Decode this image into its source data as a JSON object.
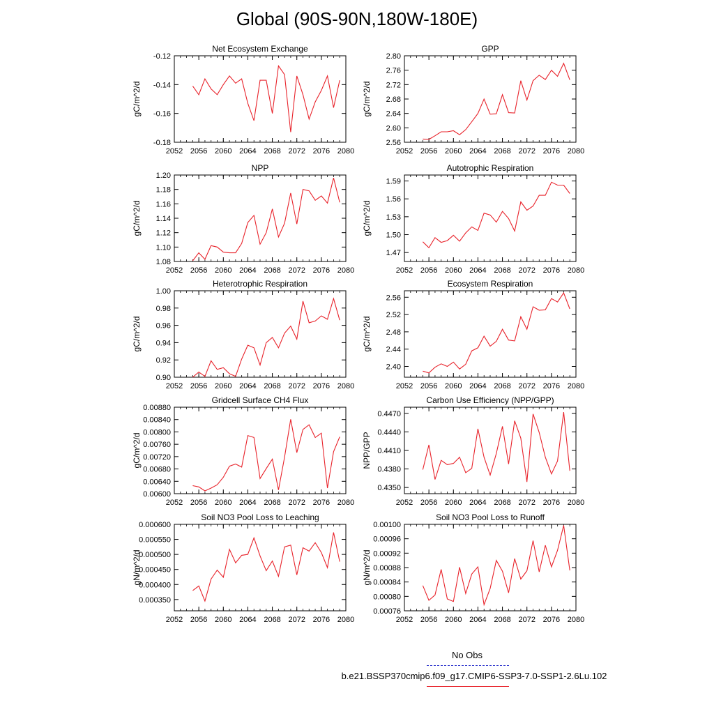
{
  "title": "Global (90S-90N,180W-180E)",
  "legend": {
    "obs_label": "No Obs",
    "case_label": "b.e21.BSSP370cmip6.f09_g17.CMIP6-SSP3-7.0-SSP1-2.6Lu.102",
    "obs_color": "#2c33cc",
    "case_color": "#e8222a"
  },
  "chart_data": [
    {
      "type": "line",
      "title": "Net Ecosystem Exchange",
      "ylabel": "gC/m^2/d",
      "xlim": [
        2052,
        2080
      ],
      "xticks": [
        "2052",
        "2056",
        "2060",
        "2064",
        "2068",
        "2072",
        "2076",
        "2080"
      ],
      "ylim": [
        -0.18,
        -0.12
      ],
      "yticks": [
        "-0.18",
        "-0.16",
        "-0.14",
        "-0.12"
      ],
      "x": [
        2055,
        2056,
        2057,
        2058,
        2059,
        2060,
        2061,
        2062,
        2063,
        2064,
        2065,
        2066,
        2067,
        2068,
        2069,
        2070,
        2071,
        2072,
        2073,
        2074,
        2075,
        2076,
        2077,
        2078,
        2079
      ],
      "series": [
        {
          "values": [
            -0.141,
            -0.147,
            -0.136,
            -0.143,
            -0.147,
            -0.14,
            -0.134,
            -0.139,
            -0.136,
            -0.153,
            -0.165,
            -0.137,
            -0.137,
            -0.16,
            -0.127,
            -0.133,
            -0.173,
            -0.134,
            -0.147,
            -0.164,
            -0.152,
            -0.144,
            -0.134,
            -0.156,
            -0.137
          ]
        }
      ]
    },
    {
      "type": "line",
      "title": "GPP",
      "ylabel": "gC/m^2/d",
      "xlim": [
        2052,
        2080
      ],
      "xticks": [
        "2052",
        "2056",
        "2060",
        "2064",
        "2068",
        "2072",
        "2076",
        "2080"
      ],
      "ylim": [
        2.56,
        2.8
      ],
      "yticks": [
        "2.56",
        "2.60",
        "2.64",
        "2.68",
        "2.72",
        "2.76",
        "2.80"
      ],
      "x": [
        2055,
        2056,
        2057,
        2058,
        2059,
        2060,
        2061,
        2062,
        2063,
        2064,
        2065,
        2066,
        2067,
        2068,
        2069,
        2070,
        2071,
        2072,
        2073,
        2074,
        2075,
        2076,
        2077,
        2078,
        2079
      ],
      "series": [
        {
          "values": [
            2.569,
            2.568,
            2.578,
            2.589,
            2.589,
            2.592,
            2.581,
            2.595,
            2.617,
            2.64,
            2.68,
            2.638,
            2.639,
            2.692,
            2.642,
            2.641,
            2.731,
            2.677,
            2.731,
            2.746,
            2.734,
            2.76,
            2.743,
            2.779,
            2.733
          ]
        }
      ]
    },
    {
      "type": "line",
      "title": "NPP",
      "ylabel": "gC/m^2/d",
      "xlim": [
        2052,
        2080
      ],
      "xticks": [
        "2052",
        "2056",
        "2060",
        "2064",
        "2068",
        "2072",
        "2076",
        "2080"
      ],
      "ylim": [
        1.08,
        1.2
      ],
      "yticks": [
        "1.08",
        "1.10",
        "1.12",
        "1.14",
        "1.16",
        "1.18",
        "1.20"
      ],
      "x": [
        2055,
        2056,
        2057,
        2058,
        2059,
        2060,
        2061,
        2062,
        2063,
        2064,
        2065,
        2066,
        2067,
        2068,
        2069,
        2070,
        2071,
        2072,
        2073,
        2074,
        2075,
        2076,
        2077,
        2078,
        2079
      ],
      "series": [
        {
          "values": [
            1.081,
            1.092,
            1.083,
            1.102,
            1.1,
            1.093,
            1.092,
            1.092,
            1.105,
            1.134,
            1.144,
            1.104,
            1.12,
            1.153,
            1.114,
            1.133,
            1.175,
            1.132,
            1.18,
            1.178,
            1.165,
            1.171,
            1.161,
            1.196,
            1.162
          ]
        }
      ]
    },
    {
      "type": "line",
      "title": "Autotrophic Respiration",
      "ylabel": "gC/m^2/d",
      "xlim": [
        2052,
        2080
      ],
      "xticks": [
        "2052",
        "2056",
        "2060",
        "2064",
        "2068",
        "2072",
        "2076",
        "2080"
      ],
      "ylim": [
        1.455,
        1.6
      ],
      "yticks": [
        "1.47",
        "1.50",
        "1.53",
        "1.56",
        "1.59"
      ],
      "x": [
        2055,
        2056,
        2057,
        2058,
        2059,
        2060,
        2061,
        2062,
        2063,
        2064,
        2065,
        2066,
        2067,
        2068,
        2069,
        2070,
        2071,
        2072,
        2073,
        2074,
        2075,
        2076,
        2077,
        2078,
        2079
      ],
      "series": [
        {
          "values": [
            1.488,
            1.478,
            1.495,
            1.487,
            1.49,
            1.499,
            1.489,
            1.503,
            1.513,
            1.507,
            1.536,
            1.533,
            1.521,
            1.539,
            1.527,
            1.506,
            1.555,
            1.541,
            1.548,
            1.566,
            1.566,
            1.588,
            1.583,
            1.583,
            1.569
          ]
        }
      ]
    },
    {
      "type": "line",
      "title": "Heterotrophic Respiration",
      "ylabel": "gC/m^2/d",
      "xlim": [
        2052,
        2080
      ],
      "xticks": [
        "2052",
        "2056",
        "2060",
        "2064",
        "2068",
        "2072",
        "2076",
        "2080"
      ],
      "ylim": [
        0.9,
        1.0
      ],
      "yticks": [
        "0.90",
        "0.92",
        "0.94",
        "0.96",
        "0.98",
        "1.00"
      ],
      "x": [
        2055,
        2056,
        2057,
        2058,
        2059,
        2060,
        2061,
        2062,
        2063,
        2064,
        2065,
        2066,
        2067,
        2068,
        2069,
        2070,
        2071,
        2072,
        2073,
        2074,
        2075,
        2076,
        2077,
        2078,
        2079
      ],
      "series": [
        {
          "values": [
            0.9,
            0.906,
            0.901,
            0.919,
            0.909,
            0.911,
            0.904,
            0.901,
            0.921,
            0.937,
            0.934,
            0.914,
            0.94,
            0.946,
            0.934,
            0.951,
            0.959,
            0.944,
            0.988,
            0.963,
            0.965,
            0.971,
            0.967,
            0.991,
            0.966
          ]
        }
      ]
    },
    {
      "type": "line",
      "title": "Ecosystem Respiration",
      "ylabel": "gC/m^2/d",
      "xlim": [
        2052,
        2080
      ],
      "xticks": [
        "2052",
        "2056",
        "2060",
        "2064",
        "2068",
        "2072",
        "2076",
        "2080"
      ],
      "ylim": [
        2.375,
        2.575
      ],
      "yticks": [
        "2.40",
        "2.44",
        "2.48",
        "2.52",
        "2.56"
      ],
      "x": [
        2055,
        2056,
        2057,
        2058,
        2059,
        2060,
        2061,
        2062,
        2063,
        2064,
        2065,
        2066,
        2067,
        2068,
        2069,
        2070,
        2071,
        2072,
        2073,
        2074,
        2075,
        2076,
        2077,
        2078,
        2079
      ],
      "series": [
        {
          "values": [
            2.389,
            2.385,
            2.398,
            2.406,
            2.4,
            2.41,
            2.394,
            2.405,
            2.436,
            2.443,
            2.47,
            2.447,
            2.458,
            2.486,
            2.461,
            2.459,
            2.515,
            2.486,
            2.538,
            2.53,
            2.531,
            2.557,
            2.549,
            2.57,
            2.533
          ]
        }
      ]
    },
    {
      "type": "line",
      "title": "Gridcell Surface CH4 Flux",
      "ylabel": "gC/m^2/d",
      "xlim": [
        2052,
        2080
      ],
      "xticks": [
        "2052",
        "2056",
        "2060",
        "2064",
        "2068",
        "2072",
        "2076",
        "2080"
      ],
      "ylim": [
        0.006,
        0.0088
      ],
      "yticks": [
        "0.00600",
        "0.00640",
        "0.00680",
        "0.00720",
        "0.00760",
        "0.00800",
        "0.00840",
        "0.00880"
      ],
      "x": [
        2055,
        2056,
        2057,
        2058,
        2059,
        2060,
        2061,
        2062,
        2063,
        2064,
        2065,
        2066,
        2067,
        2068,
        2069,
        2070,
        2071,
        2072,
        2073,
        2074,
        2075,
        2076,
        2077,
        2078,
        2079
      ],
      "series": [
        {
          "values": [
            0.00626,
            0.00622,
            0.00609,
            0.00618,
            0.00629,
            0.00653,
            0.00689,
            0.00696,
            0.00686,
            0.00788,
            0.00782,
            0.00649,
            0.00681,
            0.00712,
            0.00612,
            0.00718,
            0.00841,
            0.00733,
            0.00808,
            0.00823,
            0.00782,
            0.00796,
            0.00618,
            0.00736,
            0.00784
          ]
        }
      ]
    },
    {
      "type": "line",
      "title": "Carbon Use Efficiency (NPP/GPP)",
      "ylabel": "NPP/GPP",
      "xlim": [
        2052,
        2080
      ],
      "xticks": [
        "2052",
        "2056",
        "2060",
        "2064",
        "2068",
        "2072",
        "2076",
        "2080"
      ],
      "ylim": [
        0.434,
        0.448
      ],
      "yticks": [
        "0.4350",
        "0.4380",
        "0.4410",
        "0.4440",
        "0.4470"
      ],
      "x": [
        2055,
        2056,
        2057,
        2058,
        2059,
        2060,
        2061,
        2062,
        2063,
        2064,
        2065,
        2066,
        2067,
        2068,
        2069,
        2070,
        2071,
        2072,
        2073,
        2074,
        2075,
        2076,
        2077,
        2078,
        2079
      ],
      "series": [
        {
          "values": [
            0.4379,
            0.4419,
            0.4363,
            0.4394,
            0.4387,
            0.4389,
            0.4399,
            0.4374,
            0.4381,
            0.4445,
            0.4399,
            0.437,
            0.4405,
            0.4449,
            0.4388,
            0.4458,
            0.443,
            0.4359,
            0.4469,
            0.4439,
            0.4399,
            0.4372,
            0.4393,
            0.4472,
            0.4377
          ]
        }
      ]
    },
    {
      "type": "line",
      "title": "Soil NO3 Pool Loss to Leaching",
      "ylabel": "gN/m^2/d",
      "xlim": [
        2052,
        2080
      ],
      "xticks": [
        "2052",
        "2056",
        "2060",
        "2064",
        "2068",
        "2072",
        "2076",
        "2080"
      ],
      "ylim": [
        0.0003125,
        0.0006
      ],
      "yticks": [
        "0.000350",
        "0.000400",
        "0.000450",
        "0.000500",
        "0.000550",
        "0.000600"
      ],
      "x": [
        2055,
        2056,
        2057,
        2058,
        2059,
        2060,
        2061,
        2062,
        2063,
        2064,
        2065,
        2066,
        2067,
        2068,
        2069,
        2070,
        2071,
        2072,
        2073,
        2074,
        2075,
        2076,
        2077,
        2078,
        2079
      ],
      "series": [
        {
          "values": [
            0.00038,
            0.000395,
            0.000345,
            0.000418,
            0.000448,
            0.000424,
            0.000517,
            0.000472,
            0.000497,
            0.0005,
            0.000555,
            0.000495,
            0.000446,
            0.000478,
            0.000427,
            0.000525,
            0.000531,
            0.000432,
            0.000522,
            0.000511,
            0.000539,
            0.000506,
            0.000456,
            0.000573,
            0.000476
          ]
        }
      ]
    },
    {
      "type": "line",
      "title": "Soil NO3 Pool Loss to Runoff",
      "ylabel": "gN/m^2/d",
      "xlim": [
        2052,
        2080
      ],
      "xticks": [
        "2052",
        "2056",
        "2060",
        "2064",
        "2068",
        "2072",
        "2076",
        "2080"
      ],
      "ylim": [
        0.00076,
        0.001
      ],
      "yticks": [
        "0.00076",
        "0.00080",
        "0.00084",
        "0.00088",
        "0.00092",
        "0.00096",
        "0.00100"
      ],
      "x": [
        2055,
        2056,
        2057,
        2058,
        2059,
        2060,
        2061,
        2062,
        2063,
        2064,
        2065,
        2066,
        2067,
        2068,
        2069,
        2070,
        2071,
        2072,
        2073,
        2074,
        2075,
        2076,
        2077,
        2078,
        2079
      ],
      "series": [
        {
          "values": [
            0.00083,
            0.000789,
            0.000804,
            0.000875,
            0.000793,
            0.000786,
            0.000881,
            0.000808,
            0.000862,
            0.000882,
            0.000777,
            0.000822,
            0.0009,
            0.00087,
            0.00081,
            0.000905,
            0.000848,
            0.000871,
            0.000955,
            0.000868,
            0.000942,
            0.000882,
            0.000928,
            0.000997,
            0.000872
          ]
        }
      ]
    }
  ]
}
